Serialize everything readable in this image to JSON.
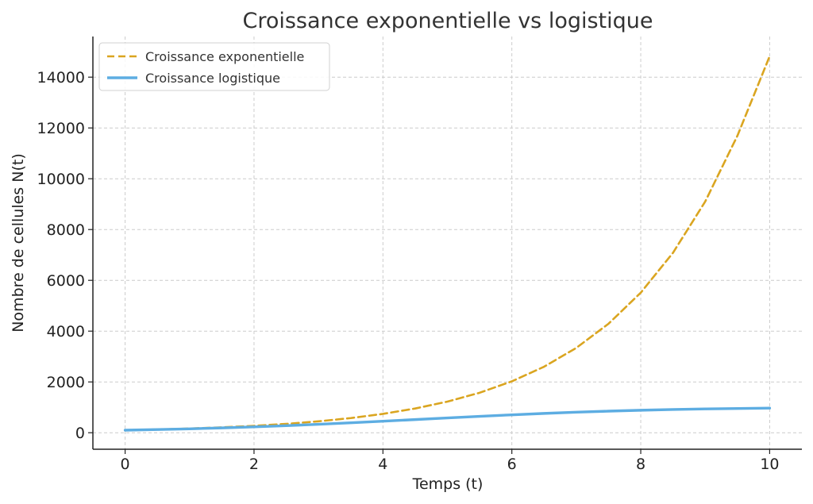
{
  "chart_data": {
    "type": "line",
    "title": "Croissance exponentielle vs logistique",
    "xlabel": "Temps (t)",
    "ylabel": "Nombre de cellules N(t)",
    "xlim": [
      -0.5,
      10.5
    ],
    "ylim": [
      -650,
      15600
    ],
    "xticks": [
      0,
      2,
      4,
      6,
      8,
      10
    ],
    "yticks": [
      0,
      2000,
      4000,
      6000,
      8000,
      10000,
      12000,
      14000
    ],
    "grid": true,
    "legend_position": "top-left",
    "series": [
      {
        "name": "Croissance exponentielle",
        "style": "dashed",
        "color": "#DAA520",
        "x": [
          0,
          0.5,
          1,
          1.5,
          2,
          2.5,
          3,
          3.5,
          4,
          4.5,
          5,
          5.5,
          6,
          6.5,
          7,
          7.5,
          8,
          8.5,
          9,
          9.5,
          10
        ],
        "y": [
          100,
          128,
          165,
          212,
          272,
          349,
          449,
          577,
          742,
          954,
          1225,
          1574,
          2023,
          2599,
          3340,
          4292,
          5513,
          7084,
          9102,
          11695,
          14823
        ]
      },
      {
        "name": "Croissance logistique",
        "style": "solid",
        "color": "#5DADE2",
        "x": [
          0,
          0.5,
          1,
          1.5,
          2,
          2.5,
          3,
          3.5,
          4,
          4.5,
          5,
          5.5,
          6,
          6.5,
          7,
          7.5,
          8,
          8.5,
          9,
          9.5,
          10
        ],
        "y": [
          100,
          125,
          154,
          190,
          231,
          279,
          332,
          391,
          454,
          518,
          583,
          646,
          705,
          760,
          808,
          850,
          885,
          914,
          937,
          955,
          968
        ]
      }
    ]
  }
}
